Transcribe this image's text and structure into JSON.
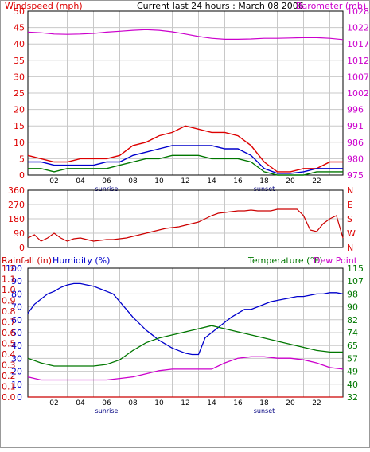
{
  "header": {
    "left_label": "Windspeed (mph)",
    "center_label": "Current last 24 hours : March 08 2006",
    "right_label": "Barometer (mb)"
  },
  "colors": {
    "windspeed": "#dd0000",
    "wind_avg": "#0000cc",
    "wind_green": "#007700",
    "barometer": "#cc00cc",
    "direction": "#cc0000",
    "humidity": "#0000cc",
    "temperature": "#007700",
    "dewpoint": "#cc00cc",
    "rainfall": "#cc0000",
    "grid": "#c8c8c8",
    "axis_label_left": "#dd0000",
    "axis_label_right_top": "#cc00cc",
    "axis_label_right_bottom": "#007700"
  },
  "chart_data": [
    {
      "type": "line",
      "title": "Current last 24 hours : March 08 2006",
      "xlabel": "",
      "x_ticks": [
        "02",
        "04",
        "06",
        "08",
        "10",
        "12",
        "14",
        "16",
        "18",
        "20",
        "22"
      ],
      "x_notes": [
        {
          "at": "06",
          "text": "sunrise"
        },
        {
          "at": "18",
          "text": "sunset"
        }
      ],
      "y_left": {
        "label": "Windspeed (mph)",
        "ticks": [
          0,
          5,
          10,
          15,
          20,
          25,
          30,
          35,
          40,
          45,
          50
        ],
        "range": [
          0,
          50
        ]
      },
      "y_right": {
        "label": "Barometer (mb)",
        "ticks": [
          975,
          980,
          986,
          991,
          996,
          1002,
          1007,
          1012,
          1017,
          1022,
          1028
        ],
        "range": [
          975,
          1028
        ]
      },
      "series": [
        {
          "name": "Windspeed (mph)",
          "axis": "left",
          "x": [
            0,
            1,
            2,
            3,
            4,
            5,
            6,
            7,
            8,
            9,
            10,
            11,
            12,
            13,
            14,
            15,
            16,
            17,
            18,
            19,
            20,
            21,
            22,
            23,
            24
          ],
          "values": [
            6,
            5,
            4,
            4,
            5,
            5,
            5,
            6,
            9,
            10,
            12,
            13,
            15,
            14,
            13,
            13,
            12,
            9,
            4,
            1,
            1,
            2,
            2,
            4,
            4
          ]
        },
        {
          "name": "Wind average",
          "axis": "left",
          "x": [
            0,
            1,
            2,
            3,
            4,
            5,
            6,
            7,
            8,
            9,
            10,
            11,
            12,
            13,
            14,
            15,
            16,
            17,
            18,
            19,
            20,
            21,
            22,
            23,
            24
          ],
          "values": [
            4,
            4,
            3,
            3,
            3,
            3,
            4,
            4,
            6,
            7,
            8,
            9,
            9,
            9,
            9,
            8,
            8,
            6,
            2,
            0.5,
            0.5,
            1,
            2,
            2,
            2
          ]
        },
        {
          "name": "Wind low",
          "axis": "left",
          "x": [
            0,
            1,
            2,
            3,
            4,
            5,
            6,
            7,
            8,
            9,
            10,
            11,
            12,
            13,
            14,
            15,
            16,
            17,
            18,
            19,
            20,
            21,
            22,
            23,
            24
          ],
          "values": [
            2,
            2,
            1,
            2,
            2,
            2,
            2,
            3,
            4,
            5,
            5,
            6,
            6,
            6,
            5,
            5,
            5,
            4,
            1,
            0,
            0,
            0,
            1,
            1,
            1
          ]
        },
        {
          "name": "Barometer (mb)",
          "axis": "right",
          "x": [
            0,
            1,
            2,
            3,
            4,
            5,
            6,
            7,
            8,
            9,
            10,
            11,
            12,
            13,
            14,
            15,
            16,
            17,
            18,
            19,
            20,
            21,
            22,
            23,
            24
          ],
          "values": [
            1021.2,
            1021.0,
            1020.6,
            1020.5,
            1020.6,
            1020.8,
            1021.2,
            1021.5,
            1021.8,
            1022.0,
            1021.8,
            1021.3,
            1020.6,
            1019.8,
            1019.2,
            1018.9,
            1018.9,
            1019.0,
            1019.2,
            1019.2,
            1019.3,
            1019.4,
            1019.4,
            1019.2,
            1018.8
          ]
        }
      ]
    },
    {
      "type": "line",
      "xlabel": "",
      "y_left": {
        "label": "",
        "ticks": [
          0,
          90,
          180,
          270,
          360
        ],
        "range": [
          0,
          360
        ]
      },
      "y_right": {
        "label": "",
        "ticks": [
          "N",
          "W",
          "S",
          "E",
          "N"
        ]
      },
      "series": [
        {
          "name": "Wind direction",
          "x": [
            0,
            0.5,
            1,
            1.5,
            2,
            2.5,
            3,
            3.5,
            4,
            4.5,
            5,
            5.5,
            6,
            6.5,
            7,
            7.5,
            8,
            8.5,
            9,
            9.5,
            10,
            10.5,
            11,
            11.5,
            12,
            12.5,
            13,
            13.5,
            14,
            14.5,
            15,
            15.5,
            16,
            16.5,
            17,
            17.5,
            18,
            18.5,
            19,
            19.5,
            20,
            20.5,
            21,
            21.5,
            22,
            22.5,
            23,
            23.5,
            24
          ],
          "values": [
            60,
            80,
            40,
            60,
            90,
            60,
            40,
            55,
            60,
            50,
            40,
            45,
            50,
            50,
            55,
            60,
            70,
            80,
            90,
            100,
            110,
            120,
            125,
            130,
            140,
            150,
            160,
            180,
            200,
            215,
            220,
            225,
            230,
            230,
            235,
            230,
            230,
            230,
            240,
            240,
            240,
            240,
            200,
            110,
            100,
            150,
            180,
            200,
            60
          ]
        }
      ]
    },
    {
      "type": "line",
      "xlabel": "",
      "x_ticks": [
        "02",
        "04",
        "06",
        "08",
        "10",
        "12",
        "14",
        "16",
        "18",
        "20",
        "22"
      ],
      "x_notes": [
        {
          "at": "06",
          "text": "sunrise"
        },
        {
          "at": "18",
          "text": "sunset"
        }
      ],
      "y_left": {
        "label": "Rainfall (in)  Humidity (%)",
        "ticks": [
          0,
          10,
          20,
          30,
          40,
          50,
          60,
          70,
          80,
          90,
          100
        ],
        "rainfall_ticks": [
          0.0,
          0.1,
          0.2,
          0.3,
          0.4,
          0.5,
          0.6,
          0.7,
          0.8,
          0.9,
          1.0,
          1.1,
          1.2
        ],
        "range": [
          0,
          100
        ]
      },
      "y_right": {
        "label": "Temperature (°F)Dew Point",
        "ticks": [
          32,
          40,
          49,
          57,
          65,
          74,
          82,
          90,
          98,
          107,
          115
        ],
        "range": [
          32,
          115
        ]
      },
      "series": [
        {
          "name": "Humidity (%)",
          "axis": "left",
          "x": [
            0,
            0.5,
            1,
            1.5,
            2,
            2.5,
            3,
            3.5,
            4,
            4.5,
            5,
            5.5,
            6,
            6.5,
            7,
            7.5,
            8,
            8.5,
            9,
            9.5,
            10,
            10.5,
            11,
            11.5,
            12,
            12.5,
            13,
            13.5,
            14,
            14.5,
            15,
            15.5,
            16,
            16.5,
            17,
            17.5,
            18,
            18.5,
            19,
            19.5,
            20,
            20.5,
            21,
            21.5,
            22,
            22.5,
            23,
            23.5,
            24
          ],
          "values": [
            65,
            72,
            76,
            80,
            82,
            85,
            87,
            88,
            88,
            87,
            86,
            84,
            82,
            80,
            74,
            68,
            62,
            57,
            52,
            48,
            44,
            41,
            38,
            36,
            34,
            33,
            33,
            46,
            50,
            54,
            58,
            62,
            65,
            68,
            68,
            70,
            72,
            74,
            75,
            76,
            77,
            78,
            78,
            79,
            80,
            80,
            81,
            81,
            80
          ]
        },
        {
          "name": "Temperature (°F)",
          "axis": "right",
          "x": [
            0,
            1,
            2,
            3,
            4,
            5,
            6,
            7,
            8,
            9,
            10,
            11,
            12,
            13,
            14,
            15,
            16,
            17,
            18,
            19,
            20,
            21,
            22,
            23,
            24
          ],
          "values": [
            57,
            54,
            52,
            52,
            52,
            52,
            53,
            56,
            62,
            67,
            70,
            72,
            74,
            76,
            78,
            76,
            74,
            72,
            70,
            68,
            66,
            64,
            62,
            61,
            61
          ]
        },
        {
          "name": "Dew Point",
          "axis": "right",
          "x": [
            0,
            1,
            2,
            3,
            4,
            5,
            6,
            7,
            8,
            9,
            10,
            11,
            12,
            13,
            14,
            15,
            16,
            17,
            18,
            19,
            20,
            21,
            22,
            23,
            24
          ],
          "values": [
            45,
            43,
            43,
            43,
            43,
            43,
            43,
            44,
            45,
            47,
            49,
            50,
            50,
            50,
            50,
            54,
            57,
            58,
            58,
            57,
            57,
            56,
            54,
            51,
            50
          ]
        },
        {
          "name": "Rainfall (in)",
          "axis": "left",
          "x": [
            0,
            24
          ],
          "values": [
            0,
            0
          ]
        }
      ]
    }
  ]
}
